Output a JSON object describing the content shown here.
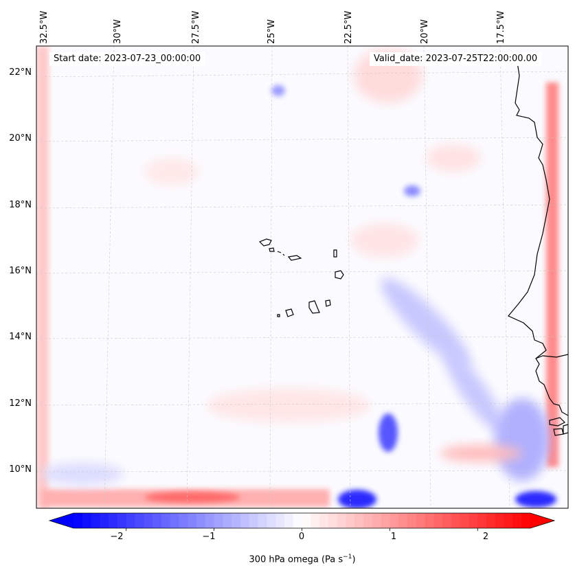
{
  "map": {
    "start_date": "Start date: 2023-07-23_00:00:00",
    "valid_date": "Valid_date: 2023-07-25T22:00:00.00",
    "lon_labels": [
      "32.5°W",
      "30°W",
      "27.5°W",
      "25°W",
      "22.5°W",
      "20°W",
      "17.5°W"
    ],
    "lat_labels": [
      "22°N",
      "20°N",
      "18°N",
      "16°N",
      "14°N",
      "12°N",
      "10°N"
    ],
    "extent": {
      "lon_min": -33.0,
      "lon_max": -15.4,
      "lat_min": 8.9,
      "lat_max": 22.8
    }
  },
  "colorbar": {
    "ticks": [
      "−2",
      "−1",
      "0",
      "1",
      "2"
    ],
    "tick_values": [
      -2,
      -1,
      0,
      1,
      2
    ],
    "range": [
      -2.6,
      2.6
    ],
    "label": "300 hPa omega (Pa s",
    "label_sup": "−1",
    "label_close": ")",
    "colormap": "bwr",
    "low_color": "#0000ff",
    "mid_color": "#ffffff",
    "high_color": "#ff0000"
  }
}
